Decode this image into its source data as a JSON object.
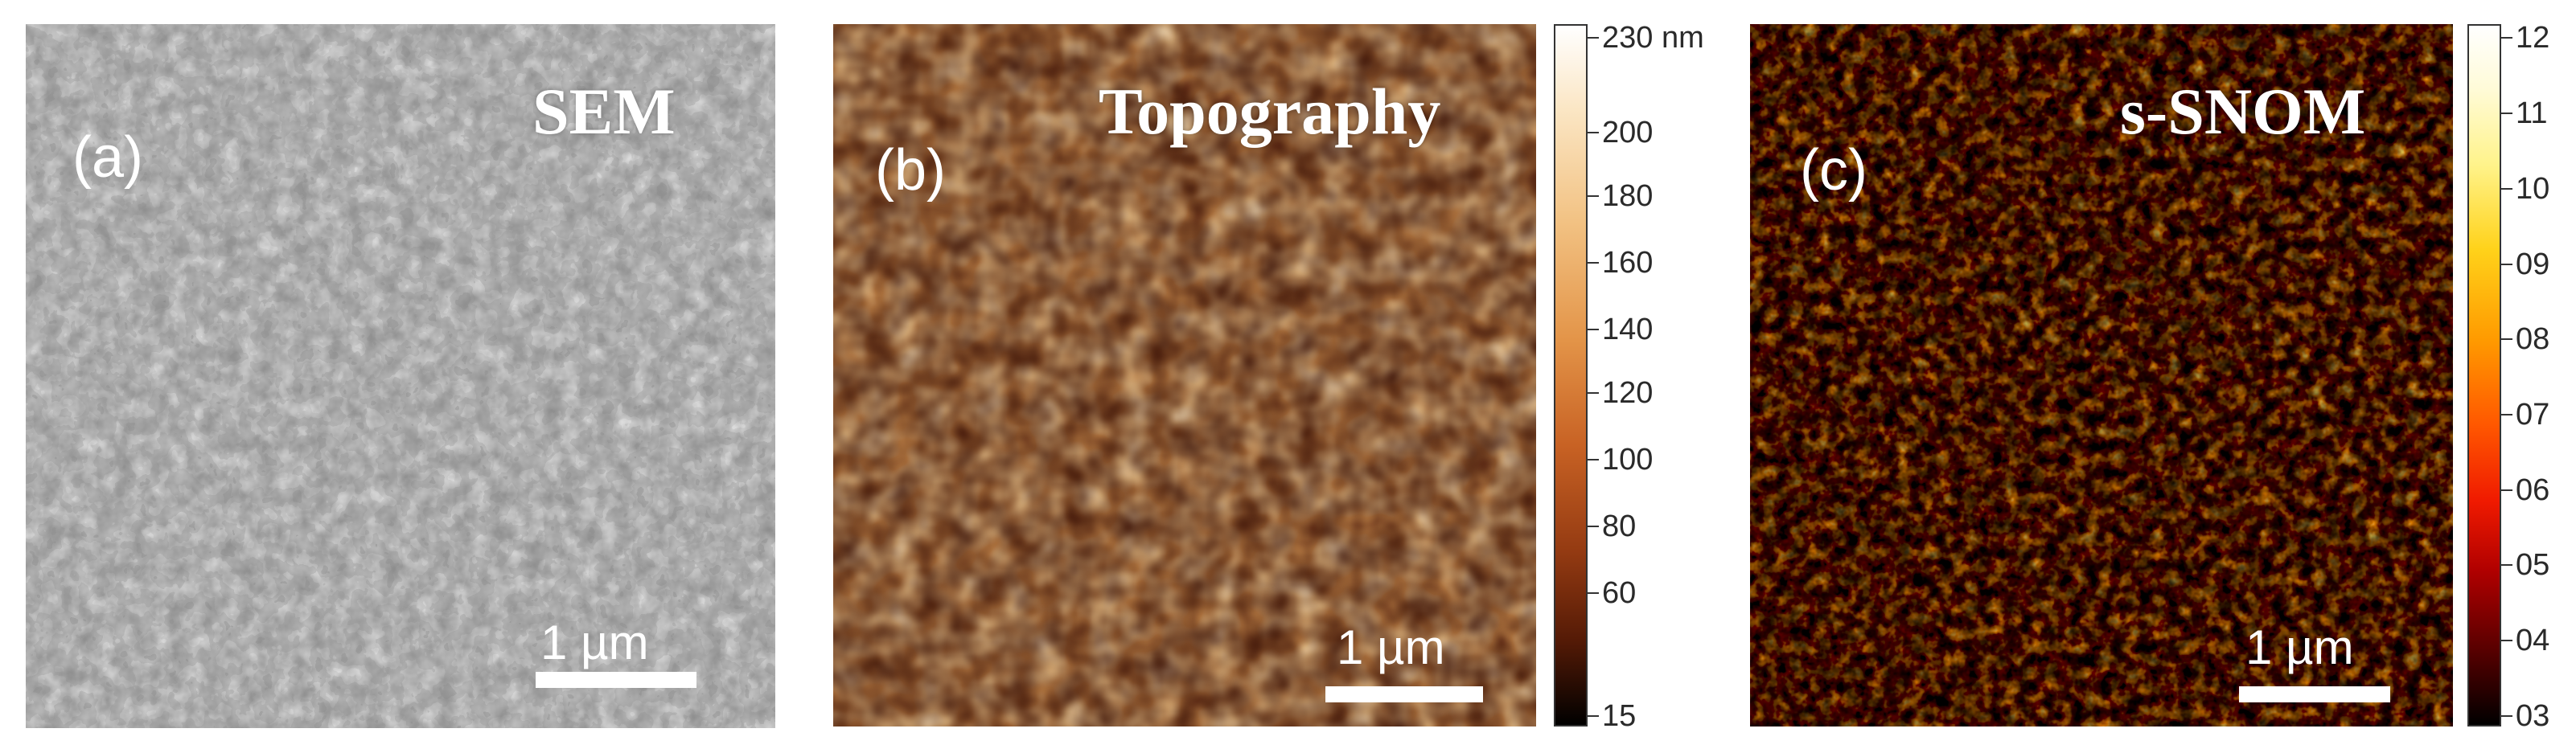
{
  "panels": {
    "a": {
      "letter": "(a)",
      "title": "SEM",
      "scalebar": "1 µm"
    },
    "b": {
      "letter": "(b)",
      "title": "Topography",
      "scalebar": "1 µm"
    },
    "c": {
      "letter": "(c)",
      "title": "s-SNOM",
      "scalebar": "1 µm"
    }
  },
  "colorbar_b": {
    "ticks": [
      "230 nm",
      "200",
      "180",
      "160",
      "140",
      "120",
      "100",
      "80",
      "60",
      "15"
    ],
    "values": [
      230,
      200,
      180,
      160,
      140,
      120,
      100,
      80,
      60,
      15
    ],
    "colors": {
      "max": "#ffffff",
      "mid": "#e39448",
      "min": "#000000"
    }
  },
  "colorbar_c": {
    "ticks": [
      "12",
      "11",
      "10",
      "09",
      "08",
      "07",
      "06",
      "05",
      "04",
      "03"
    ],
    "values": [
      12,
      11,
      10,
      9,
      8,
      7,
      6,
      5,
      4,
      3
    ],
    "colors": {
      "max": "#ffffff",
      "mid": "#ff5800",
      "min": "#000000"
    }
  }
}
